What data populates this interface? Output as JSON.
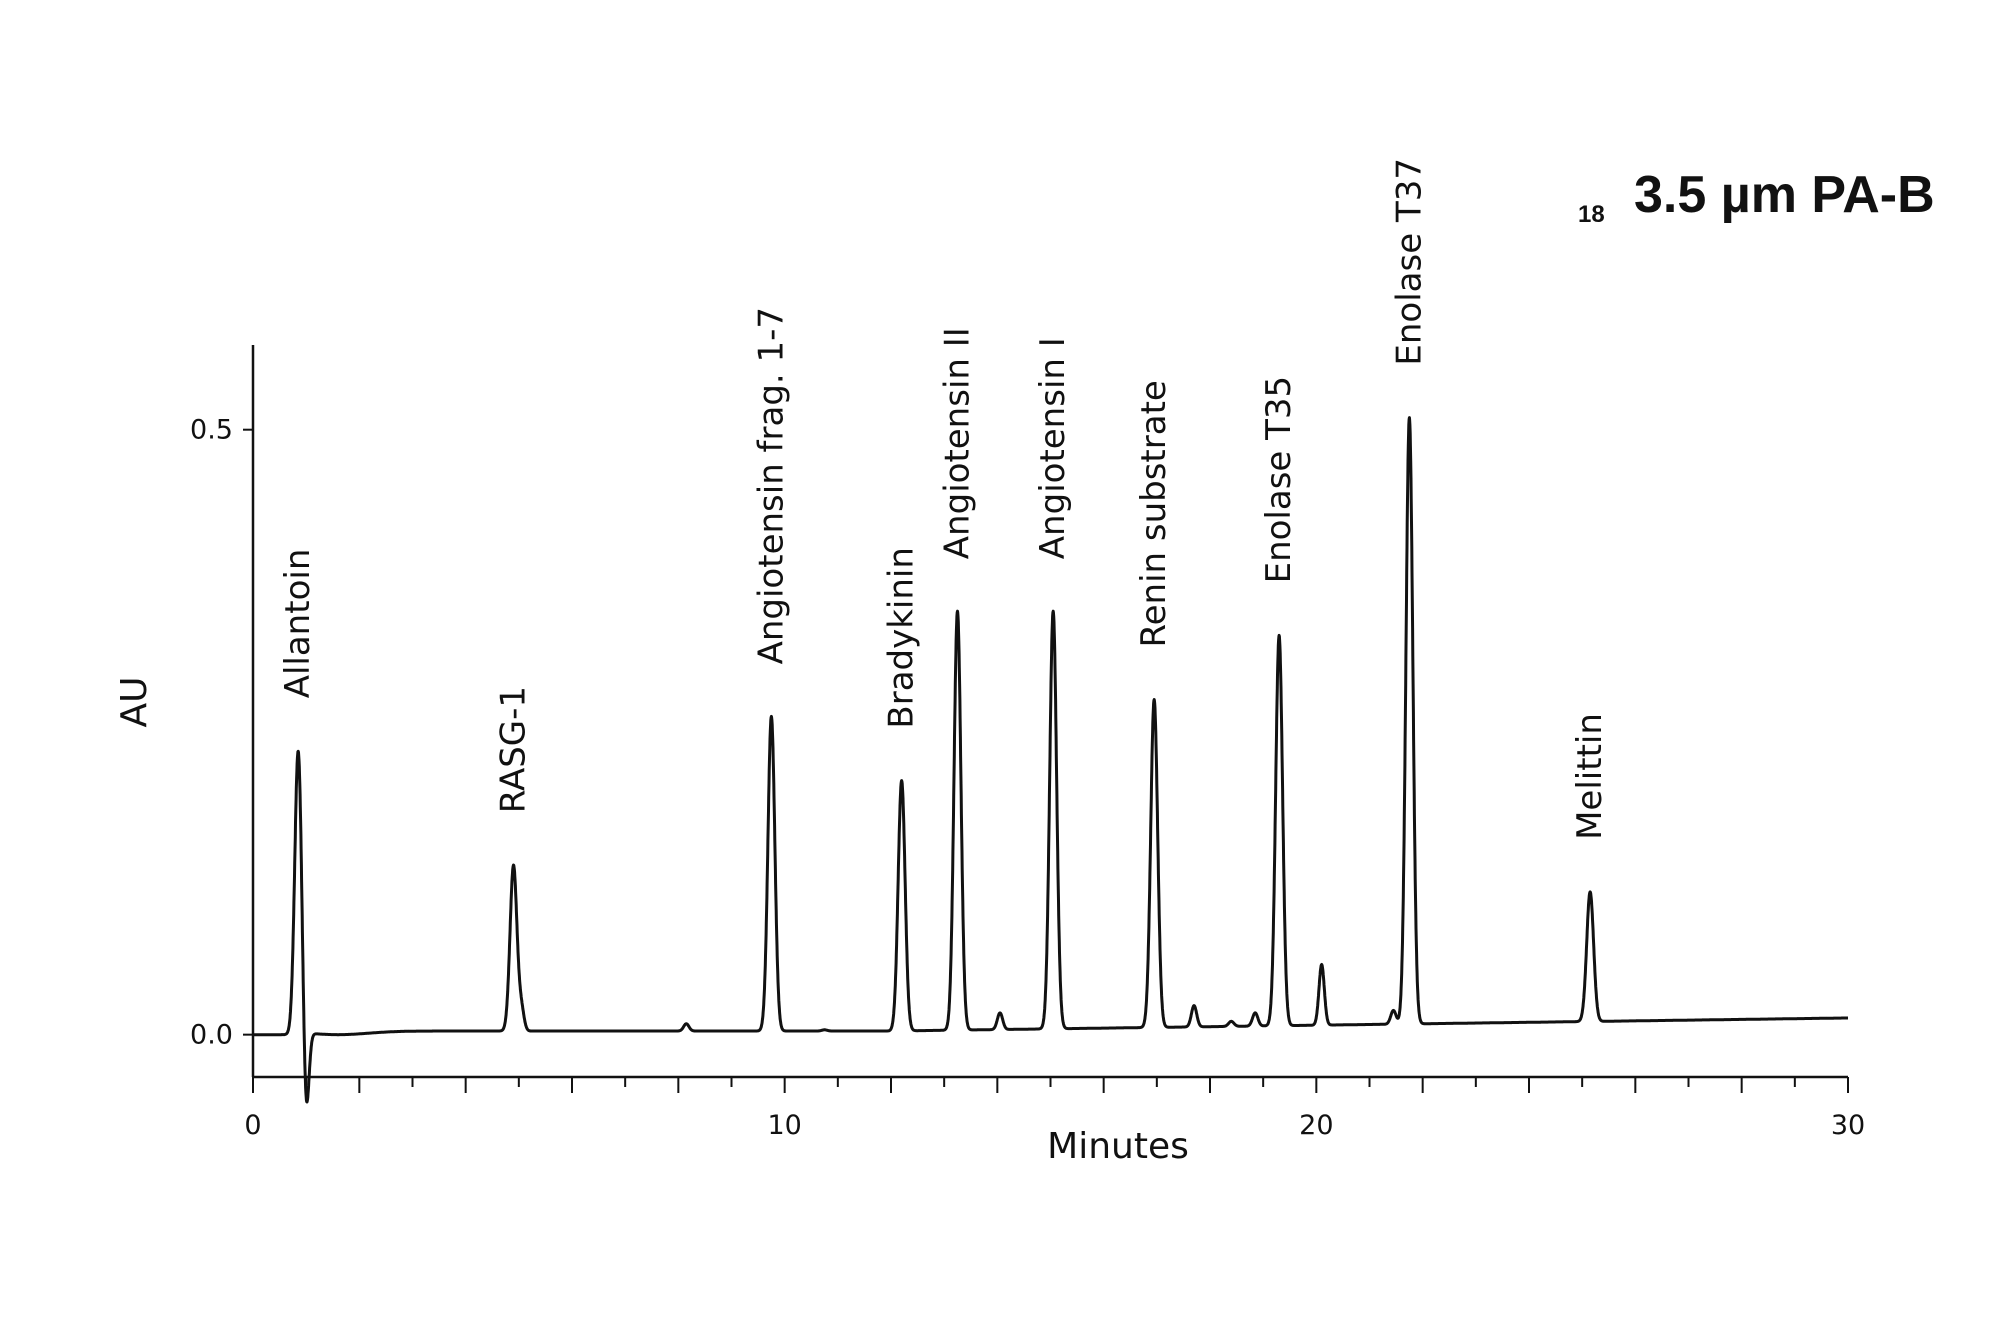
{
  "chart_data": {
    "type": "line",
    "title": "3.5 µm PA-B",
    "title_prefix": "18",
    "xlabel": "Minutes",
    "ylabel": "AU",
    "xlim": [
      0,
      30
    ],
    "ylim": [
      -0.035,
      0.57
    ],
    "x_ticks": [
      0,
      10,
      20,
      30
    ],
    "x_tick_labels": [
      "0",
      "10",
      "20",
      "30"
    ],
    "y_ticks": [
      0.0,
      0.5
    ],
    "y_tick_labels": [
      "0.0",
      "0.5"
    ],
    "grid": false,
    "legend": "none",
    "baseline": 0.0,
    "series": [
      {
        "peaks": [
          {
            "label": "Allantoin",
            "x": 0.85,
            "y": 0.235
          },
          {
            "label": "RASG-1",
            "x": 4.9,
            "y": 0.14
          },
          {
            "label": "Angiotensin frag. 1-7",
            "x": 9.75,
            "y": 0.263
          },
          {
            "label": "Bradykinin",
            "x": 12.2,
            "y": 0.21
          },
          {
            "label": "Angiotensin II",
            "x": 13.25,
            "y": 0.35
          },
          {
            "label": "Angiotensin I",
            "x": 15.05,
            "y": 0.35
          },
          {
            "label": "Renin substrate",
            "x": 16.95,
            "y": 0.277
          },
          {
            "label": "Enolase T35",
            "x": 19.3,
            "y": 0.33
          },
          {
            "label": "Enolase T37",
            "x": 21.75,
            "y": 0.51
          },
          {
            "label": "Melittin",
            "x": 25.15,
            "y": 0.118
          }
        ],
        "minor_peaks": [
          {
            "x": 1.0,
            "y": -0.068
          },
          {
            "x": 5.05,
            "y": 0.02
          },
          {
            "x": 8.15,
            "y": 0.009
          },
          {
            "x": 10.75,
            "y": 0.004
          },
          {
            "x": 14.05,
            "y": 0.018
          },
          {
            "x": 17.7,
            "y": 0.024
          },
          {
            "x": 18.4,
            "y": 0.011
          },
          {
            "x": 18.85,
            "y": 0.018
          },
          {
            "x": 20.1,
            "y": 0.058
          },
          {
            "x": 21.45,
            "y": 0.02
          }
        ]
      }
    ]
  }
}
